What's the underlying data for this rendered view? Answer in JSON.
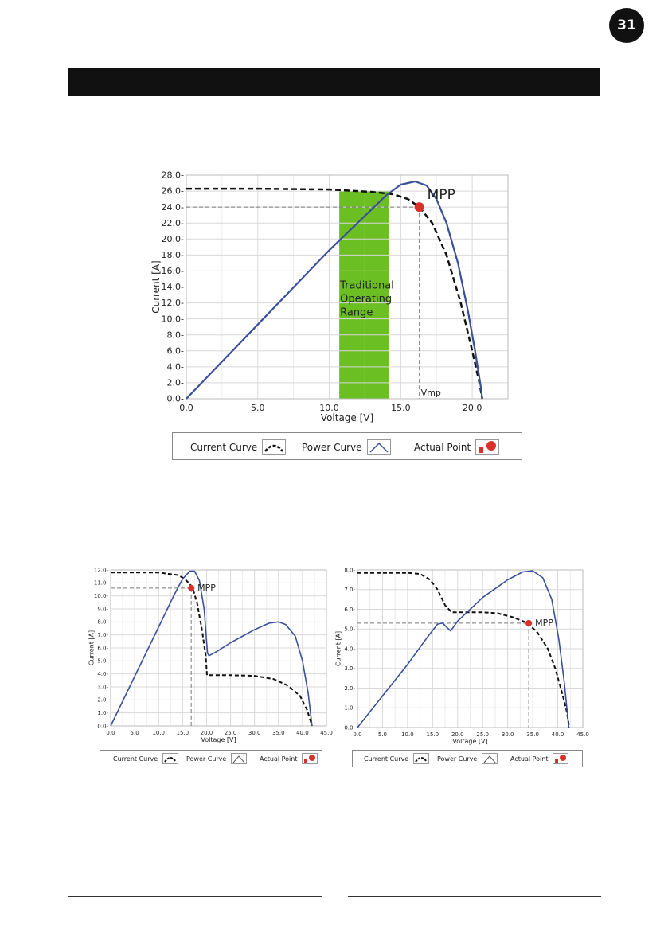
{
  "page": {
    "number": "31"
  },
  "colors": {
    "power": "#3a4f9a",
    "current": "#111111",
    "mpp": "#d9312a",
    "range": "#6cbf22",
    "grid": "#d8d8d8"
  },
  "legend": {
    "current": "Current Curve",
    "power": "Power Curve",
    "actual": "Actual Point"
  },
  "chart_data": [
    {
      "type": "line",
      "xlabel": "Voltage [V]",
      "ylabel": "Current [A]",
      "xlim": [
        0,
        22.5
      ],
      "ylim": [
        0,
        28
      ],
      "x_ticks": [
        "0.0",
        "5.0",
        "10.0",
        "15.0",
        "20.0"
      ],
      "y_ticks": [
        "0.0",
        "2.0",
        "4.0",
        "6.0",
        "8.0",
        "10.0",
        "12.0",
        "14.0",
        "16.0",
        "18.0",
        "20.0",
        "22.0",
        "24.0",
        "26.0",
        "28.0"
      ],
      "series": [
        {
          "name": "Current Curve",
          "style": "dashed",
          "points": [
            [
              0,
              26.3
            ],
            [
              5,
              26.3
            ],
            [
              10,
              26.2
            ],
            [
              13,
              25.9
            ],
            [
              14.5,
              25.6
            ],
            [
              15.5,
              25.0
            ],
            [
              16.3,
              24.0
            ],
            [
              17.2,
              22.0
            ],
            [
              18.2,
              18.0
            ],
            [
              19.2,
              12.0
            ],
            [
              20.0,
              6.0
            ],
            [
              20.5,
              2.0
            ],
            [
              20.7,
              0
            ]
          ]
        },
        {
          "name": "Power Curve",
          "style": "solid",
          "points": [
            [
              0,
              0
            ],
            [
              5,
              9.3
            ],
            [
              10,
              18.6
            ],
            [
              14,
              25.5
            ],
            [
              15,
              26.8
            ],
            [
              16,
              27.2
            ],
            [
              16.8,
              26.7
            ],
            [
              17.5,
              25.0
            ],
            [
              18.2,
              22.0
            ],
            [
              19.0,
              17.0
            ],
            [
              19.7,
              11.0
            ],
            [
              20.2,
              6.0
            ],
            [
              20.6,
              1.5
            ],
            [
              20.7,
              0
            ]
          ]
        }
      ],
      "mpp": {
        "x": 16.3,
        "y": 24.0,
        "label": "MPP"
      },
      "vmp_label": "Vmp",
      "operating_range": {
        "x0": 10.7,
        "x1": 14.2,
        "label": [
          "Traditional",
          "Operating",
          "Range"
        ]
      }
    },
    {
      "type": "line",
      "xlabel": "Voltage [V]",
      "ylabel": "Current [A]",
      "xlim": [
        0,
        45
      ],
      "ylim": [
        0,
        12
      ],
      "x_ticks": [
        "0.0",
        "5.0",
        "10.0",
        "15.0",
        "20.0",
        "25.0",
        "30.0",
        "35.0",
        "40.0",
        "45.0"
      ],
      "y_ticks": [
        "0.0",
        "1.0",
        "2.0",
        "3.0",
        "4.0",
        "5.0",
        "6.0",
        "7.0",
        "8.0",
        "9.0",
        "10.0",
        "11.0",
        "12.0"
      ],
      "series": [
        {
          "name": "Current Curve",
          "style": "dashed",
          "points": [
            [
              0,
              11.8
            ],
            [
              10,
              11.8
            ],
            [
              14,
              11.6
            ],
            [
              15.5,
              11.3
            ],
            [
              17,
              10.7
            ],
            [
              18,
              9.5
            ],
            [
              19,
              7.5
            ],
            [
              19.8,
              5.5
            ],
            [
              20.1,
              3.9
            ],
            [
              25,
              3.9
            ],
            [
              30,
              3.85
            ],
            [
              34,
              3.6
            ],
            [
              37,
              3.1
            ],
            [
              39.5,
              2.3
            ],
            [
              41,
              1.2
            ],
            [
              42,
              0
            ]
          ]
        },
        {
          "name": "Power Curve",
          "style": "solid",
          "points": [
            [
              0,
              0
            ],
            [
              5,
              3.8
            ],
            [
              10,
              7.6
            ],
            [
              13,
              9.9
            ],
            [
              15,
              11.3
            ],
            [
              16.5,
              11.9
            ],
            [
              17.5,
              11.9
            ],
            [
              18.5,
              11.2
            ],
            [
              19.5,
              9.0
            ],
            [
              20.2,
              5.6
            ],
            [
              20.5,
              5.4
            ],
            [
              22,
              5.7
            ],
            [
              25,
              6.4
            ],
            [
              30,
              7.4
            ],
            [
              33,
              7.9
            ],
            [
              35,
              8.0
            ],
            [
              36.5,
              7.8
            ],
            [
              38.5,
              6.9
            ],
            [
              40,
              5.0
            ],
            [
              41.2,
              2.5
            ],
            [
              42,
              0
            ]
          ]
        }
      ],
      "mpp": {
        "x": 16.8,
        "y": 10.6,
        "label": "MPP"
      }
    },
    {
      "type": "line",
      "xlabel": "Voltage [V]",
      "ylabel": "Current [A]",
      "xlim": [
        0,
        45
      ],
      "ylim": [
        0,
        8
      ],
      "x_ticks": [
        "0.0",
        "5.0",
        "10.0",
        "15.0",
        "20.0",
        "25.0",
        "30.0",
        "35.0",
        "40.0",
        "45.0"
      ],
      "y_ticks": [
        "0.0",
        "1.0",
        "2.0",
        "3.0",
        "4.0",
        "5.0",
        "6.0",
        "7.0",
        "8.0"
      ],
      "series": [
        {
          "name": "Current Curve",
          "style": "dashed",
          "points": [
            [
              0,
              7.85
            ],
            [
              5,
              7.85
            ],
            [
              10,
              7.85
            ],
            [
              12.5,
              7.8
            ],
            [
              14.5,
              7.5
            ],
            [
              16,
              7.0
            ],
            [
              17.5,
              6.2
            ],
            [
              18.8,
              5.85
            ],
            [
              20,
              5.85
            ],
            [
              25,
              5.85
            ],
            [
              28,
              5.8
            ],
            [
              31,
              5.6
            ],
            [
              34,
              5.3
            ],
            [
              36,
              4.8
            ],
            [
              38,
              4.0
            ],
            [
              39.5,
              3.0
            ],
            [
              40.8,
              1.8
            ],
            [
              41.8,
              0.8
            ],
            [
              42.3,
              0
            ]
          ]
        },
        {
          "name": "Power Curve",
          "style": "solid",
          "points": [
            [
              0,
              0
            ],
            [
              5,
              1.6
            ],
            [
              10,
              3.2
            ],
            [
              14,
              4.6
            ],
            [
              16,
              5.25
            ],
            [
              17,
              5.3
            ],
            [
              17.8,
              5.1
            ],
            [
              18.6,
              4.9
            ],
            [
              20,
              5.4
            ],
            [
              25,
              6.6
            ],
            [
              30,
              7.5
            ],
            [
              33,
              7.9
            ],
            [
              35,
              7.95
            ],
            [
              37,
              7.6
            ],
            [
              38.8,
              6.5
            ],
            [
              40.2,
              4.5
            ],
            [
              41.3,
              2.3
            ],
            [
              42.2,
              0
            ]
          ]
        }
      ],
      "mpp": {
        "x": 34.2,
        "y": 5.3,
        "label": "MPP"
      }
    }
  ]
}
